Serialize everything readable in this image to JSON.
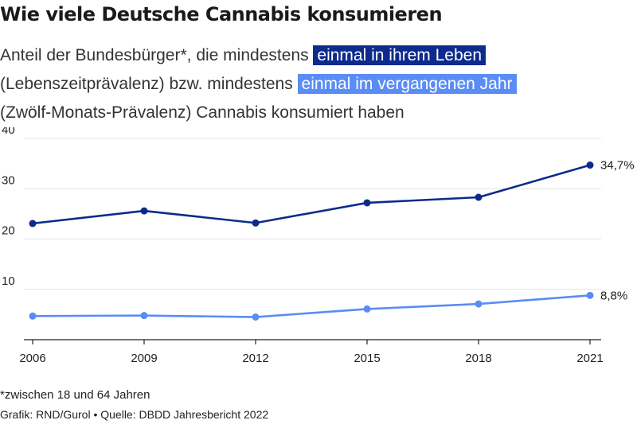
{
  "title": "Wie viele Deutsche Cannabis konsumieren",
  "subtitle": {
    "part1": "Anteil der Bundesbürger*, die mindestens ",
    "highlight1": "einmal in ihrem Leben",
    "part2": "(Lebenszeitprävalenz) bzw. mindestens ",
    "highlight2": "einmal im vergangenen Jahr",
    "part3": "(Zwölf-Monats-Prävalenz) Cannabis konsumiert haben"
  },
  "footnote": "*zwischen 18 und 64 Jahren",
  "credit": "Grafik: RND/Gurol • Quelle: DBDD Jahresbericht 2022",
  "colors": {
    "lifetime": "#0d2b8c",
    "year": "#5a8cf5",
    "grid": "#e3e3e3",
    "axis": "#222222"
  },
  "chart_data": {
    "type": "line",
    "x": [
      2006,
      2009,
      2012,
      2015,
      2018,
      2021
    ],
    "xticks": [
      "2006",
      "2009",
      "2012",
      "2015",
      "2018",
      "2021"
    ],
    "ylim": [
      0,
      40
    ],
    "yticks": [
      10,
      20,
      30,
      40
    ],
    "yticklabels": [
      "10",
      "20",
      "30",
      "40"
    ],
    "grid": true,
    "series": [
      {
        "name": "einmal in ihrem Leben",
        "values": [
          23.1,
          25.6,
          23.2,
          27.2,
          28.3,
          34.7
        ],
        "end_label": "34,7%"
      },
      {
        "name": "einmal im vergangenen Jahr",
        "values": [
          4.7,
          4.8,
          4.5,
          6.1,
          7.1,
          8.8
        ],
        "end_label": "8,8%"
      }
    ]
  }
}
